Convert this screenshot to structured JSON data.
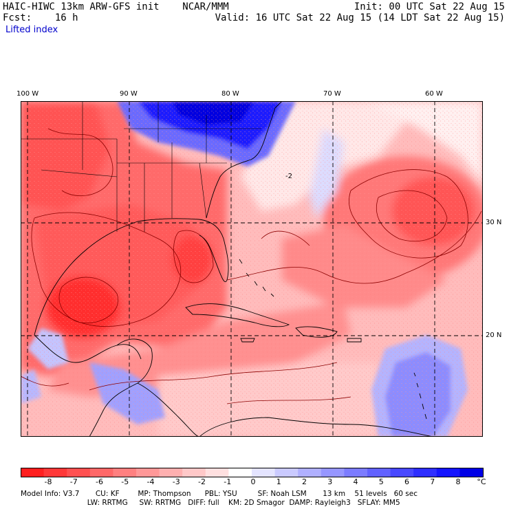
{
  "header": {
    "title": "HAIC-HIWC 13km ARW-GFS init    NCAR/MMM",
    "forecast": "Fcst:    16 h",
    "field": "Lifted index",
    "init": "Init: 00 UTC Sat 22 Aug 15",
    "valid": "Valid: 16 UTC Sat 22 Aug 15 (14 LDT Sat 22 Aug 15)"
  },
  "map": {
    "lon_labels": [
      "100 W",
      "90 W",
      "80 W",
      "70 W",
      "60 W"
    ],
    "lat_labels": [
      "30 N",
      "20 N"
    ],
    "contour_label": "-2",
    "colors": {
      "strong_negative": "#ff3a3a",
      "weak_negative": "#ffc8c8",
      "strong_positive": "#1a1aff",
      "weak_positive": "#c8c8ff",
      "zero": "#ffffff"
    }
  },
  "colorbar": {
    "ticks": [
      "-8",
      "-7",
      "-6",
      "-5",
      "-4",
      "-3",
      "-2",
      "-1",
      "0",
      "1",
      "2",
      "3",
      "4",
      "5",
      "6",
      "7",
      "8"
    ],
    "unit": "°C",
    "colors": [
      "#ff1f1f",
      "#ff3838",
      "#ff5050",
      "#ff6868",
      "#ff8080",
      "#ff9898",
      "#ffb0b0",
      "#ffc8c8",
      "#ffe0e0",
      "#ffffff",
      "#e4e4ff",
      "#cacaff",
      "#b0b0ff",
      "#9696ff",
      "#7c7cff",
      "#6262ff",
      "#4848ff",
      "#2e2eff",
      "#1414ff",
      "#0000e6"
    ]
  },
  "model_info": {
    "line1": "Model Info: V3.7       CU: KF        MP: Thompson      PBL: YSU         SF: Noah LSM       13 km    51 levels   60 sec",
    "line2": "                             LW: RRTMG     SW: RRTMG   DIFF: full    KM: 2D Smagor  DAMP: Rayleigh3   SFLAY: MM5"
  }
}
